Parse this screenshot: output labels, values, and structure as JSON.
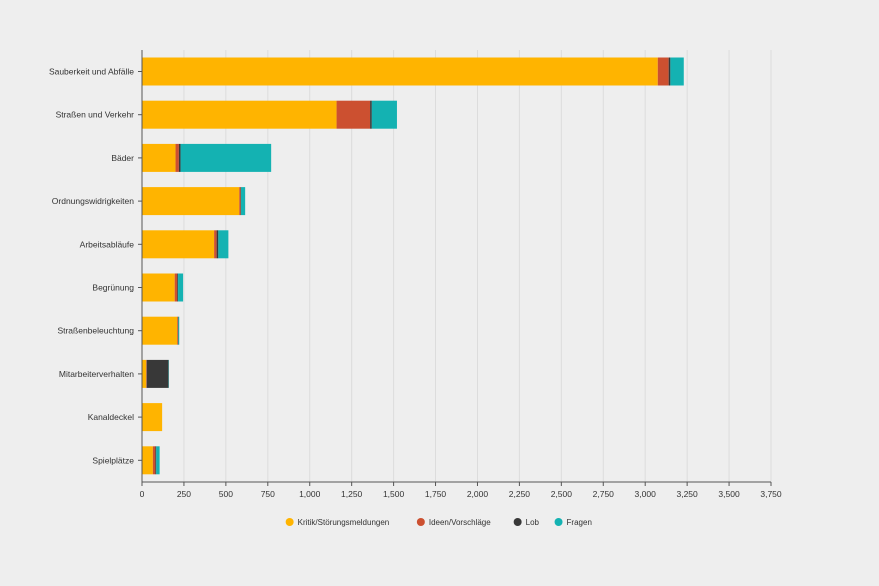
{
  "chart_data": {
    "type": "bar",
    "orientation": "horizontal",
    "stacked": true,
    "title": "",
    "xlabel": "",
    "ylabel": "",
    "xlim": [
      0,
      3750
    ],
    "x_ticks": [
      0,
      250,
      500,
      750,
      1000,
      1250,
      1500,
      1750,
      2000,
      2250,
      2500,
      2750,
      3000,
      3250,
      3500,
      3750
    ],
    "x_tick_labels": [
      "0",
      "250",
      "500",
      "750",
      "1,000",
      "1,250",
      "1,500",
      "1,750",
      "2,000",
      "2,250",
      "2,500",
      "2,750",
      "3,000",
      "3,250",
      "3,500",
      "3,750"
    ],
    "grid": "vertical",
    "legend_position": "bottom",
    "categories": [
      "Sauberkeit und Abfälle",
      "Straßen und Verkehr",
      "Bäder",
      "Ordnungswidrigkeiten",
      "Arbeitsabläufe",
      "Begrünung",
      "Straßenbeleuchtung",
      "Mitarbeiterverhalten",
      "Kanaldeckel",
      "Spielplätze"
    ],
    "series": [
      {
        "name": "Kritik/Störungsmeldungen",
        "color": "#ffb400",
        "values": [
          3075,
          1160,
          200,
          580,
          430,
          195,
          210,
          25,
          120,
          65
        ]
      },
      {
        "name": "Ideen/Vorschläge",
        "color": "#cc5030",
        "values": [
          65,
          200,
          20,
          8,
          15,
          15,
          5,
          3,
          0,
          15
        ]
      },
      {
        "name": "Lob",
        "color": "#383838",
        "values": [
          10,
          10,
          10,
          2,
          10,
          5,
          2,
          130,
          0,
          5
        ]
      },
      {
        "name": "Fragen",
        "color": "#14b2b2",
        "values": [
          80,
          150,
          540,
          25,
          60,
          30,
          5,
          2,
          0,
          20
        ]
      }
    ]
  }
}
